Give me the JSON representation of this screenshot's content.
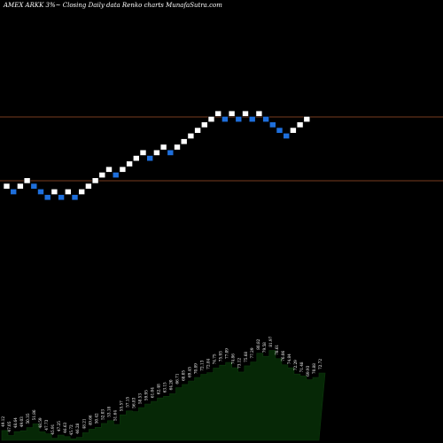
{
  "header": {
    "title": "AMEX  ARKK 3%~  Closing Daily data  Renko  charts MunafaSutra.com"
  },
  "colors": {
    "background": "#000000",
    "up_brick": "#ffffff",
    "down_brick": "#1e6fdc",
    "reference_line": "#a0522d",
    "volume_fill": "#062806"
  },
  "chart_data": {
    "type": "renko",
    "title": "AMEX  ARKK 3%~  Closing Daily data  Renko  charts MunafaSutra.com",
    "brick_size_text": "3%~",
    "grid": false,
    "reference_lines": [
      64.0,
      49.0
    ],
    "bricks": [
      {
        "dir": "up",
        "level": 52
      },
      {
        "dir": "down",
        "level": 51
      },
      {
        "dir": "up",
        "level": 52
      },
      {
        "dir": "up",
        "level": 53
      },
      {
        "dir": "down",
        "level": 52
      },
      {
        "dir": "down",
        "level": 51
      },
      {
        "dir": "down",
        "level": 50
      },
      {
        "dir": "up",
        "level": 51
      },
      {
        "dir": "down",
        "level": 50
      },
      {
        "dir": "up",
        "level": 51
      },
      {
        "dir": "down",
        "level": 50
      },
      {
        "dir": "up",
        "level": 51
      },
      {
        "dir": "up",
        "level": 52
      },
      {
        "dir": "up",
        "level": 53
      },
      {
        "dir": "up",
        "level": 54
      },
      {
        "dir": "up",
        "level": 55
      },
      {
        "dir": "down",
        "level": 54
      },
      {
        "dir": "up",
        "level": 55
      },
      {
        "dir": "up",
        "level": 56
      },
      {
        "dir": "up",
        "level": 57
      },
      {
        "dir": "up",
        "level": 58
      },
      {
        "dir": "down",
        "level": 57
      },
      {
        "dir": "up",
        "level": 58
      },
      {
        "dir": "up",
        "level": 59
      },
      {
        "dir": "down",
        "level": 58
      },
      {
        "dir": "up",
        "level": 59
      },
      {
        "dir": "up",
        "level": 60
      },
      {
        "dir": "up",
        "level": 61
      },
      {
        "dir": "up",
        "level": 62
      },
      {
        "dir": "up",
        "level": 63
      },
      {
        "dir": "up",
        "level": 64
      },
      {
        "dir": "up",
        "level": 65
      },
      {
        "dir": "down",
        "level": 64
      },
      {
        "dir": "up",
        "level": 65
      },
      {
        "dir": "down",
        "level": 64
      },
      {
        "dir": "up",
        "level": 65
      },
      {
        "dir": "down",
        "level": 64
      },
      {
        "dir": "up",
        "level": 65
      },
      {
        "dir": "down",
        "level": 64
      },
      {
        "dir": "down",
        "level": 63
      },
      {
        "dir": "down",
        "level": 62
      },
      {
        "dir": "down",
        "level": 61
      },
      {
        "dir": "up",
        "level": 62
      },
      {
        "dir": "up",
        "level": 63
      },
      {
        "dir": "up",
        "level": 64
      }
    ],
    "value_labels": [
      "49.12",
      "47.05",
      "48.64",
      "49.03",
      "50.35",
      "51.86",
      "48.59",
      "47.73",
      "45.91",
      "47.25",
      "46.63",
      "45.72",
      "46.28",
      "48.21",
      "49.66",
      "50.42",
      "52.03",
      "53.18",
      "51.64",
      "55.57",
      "57.15",
      "56.83",
      "58.53",
      "59.95",
      "61.04",
      "62.48",
      "63.15",
      "64.20",
      "66.71",
      "68.05",
      "69.45",
      "70.89",
      "72.13",
      "72.84",
      "74.75",
      "75.93",
      "77.09",
      "74.86",
      "73.12",
      "75.68",
      "77.29",
      "80.82",
      "79.58",
      "81.97",
      "78.61",
      "76.06",
      "74.84",
      "72.29",
      "71.48",
      "69.93",
      "70.88",
      "72.72"
    ]
  }
}
